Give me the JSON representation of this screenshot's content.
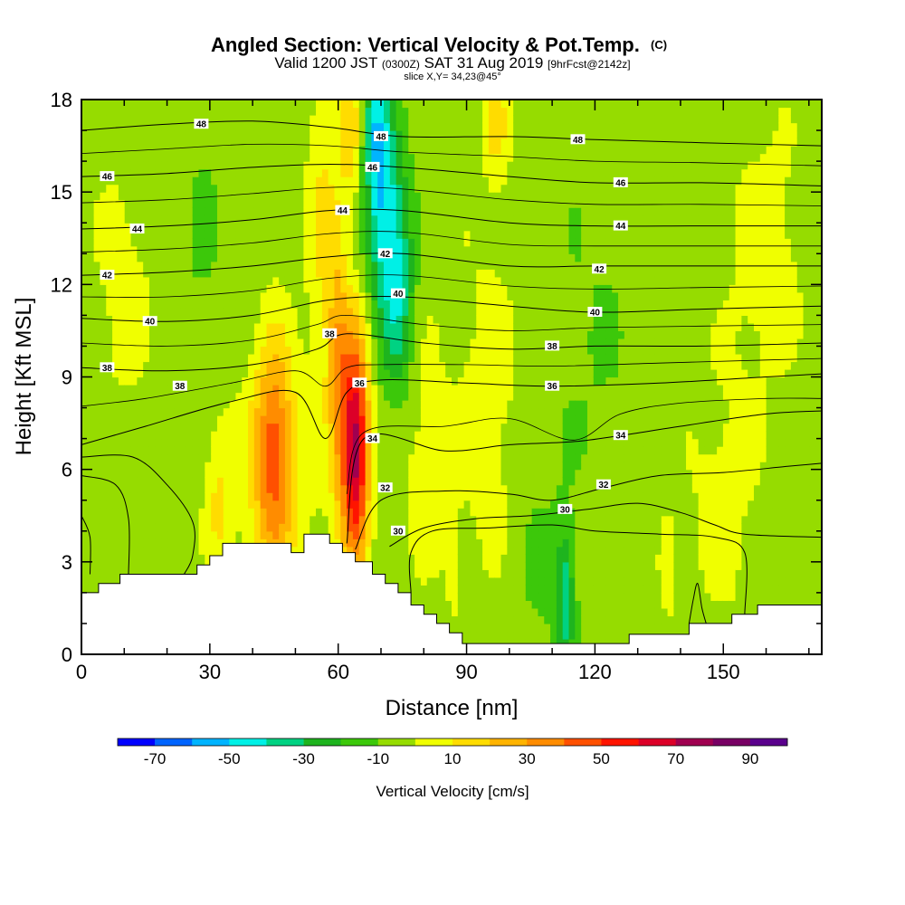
{
  "chart_data": {
    "type": "heatmap",
    "title": "Angled Section: Vertical Velocity & Pot.Temp.",
    "title_units": "(C)",
    "subtitle": {
      "valid": "Valid 1200 JST",
      "utc": "(0300Z)",
      "date": "SAT 31 Aug 2019",
      "forecast": "[9hrFcst@2142z]"
    },
    "slice": "slice X,Y= 34,23@45°",
    "xlabel": "Distance [nm]",
    "ylabel": "Height [Kft MSL]",
    "xlim": [
      0,
      173
    ],
    "ylim": [
      0,
      18
    ],
    "x_ticks": [
      0,
      30,
      60,
      90,
      120,
      150
    ],
    "y_ticks": [
      0,
      3,
      6,
      9,
      12,
      15,
      18
    ],
    "colorbar": {
      "label": "Vertical Velocity [cm/s]",
      "range": [
        -80,
        100
      ],
      "step": 10,
      "tick_values": [
        -70,
        -50,
        -30,
        -10,
        10,
        30,
        50,
        70,
        90
      ],
      "colors": [
        "#0000ff",
        "#0064ff",
        "#00b4ff",
        "#00f0e6",
        "#00d282",
        "#1eb41e",
        "#3cc80a",
        "#96dc00",
        "#f0ff00",
        "#ffdc00",
        "#ffb400",
        "#ff8c00",
        "#ff5000",
        "#ff1400",
        "#dc0028",
        "#a00050",
        "#780064",
        "#5a008c"
      ]
    },
    "background_value": -5,
    "features": [
      {
        "x": 64,
        "y": 6.7,
        "sx": 2.2,
        "sy": 2.6,
        "amp": 80
      },
      {
        "x": 60,
        "y": 9.5,
        "sx": 1.8,
        "sy": 3.2,
        "amp": 30
      },
      {
        "x": 56,
        "y": 14.0,
        "sx": 2.4,
        "sy": 4.0,
        "amp": 16
      },
      {
        "x": 63,
        "y": 17.0,
        "sx": 2.2,
        "sy": 1.6,
        "amp": 22
      },
      {
        "x": 45,
        "y": 6.6,
        "sx": 3.2,
        "sy": 2.6,
        "amp": 42
      },
      {
        "x": 45,
        "y": 5.5,
        "sx": 8.0,
        "sy": 2.6,
        "amp": 11
      },
      {
        "x": 32,
        "y": 5.0,
        "sx": 2.2,
        "sy": 1.8,
        "amp": 14
      },
      {
        "x": 74,
        "y": 12.0,
        "sx": 2.6,
        "sy": 2.6,
        "amp": -34
      },
      {
        "x": 70,
        "y": 15.0,
        "sx": 2.6,
        "sy": 2.6,
        "amp": -40
      },
      {
        "x": 68,
        "y": 17.3,
        "sx": 2.0,
        "sy": 1.3,
        "amp": -22
      },
      {
        "x": 113,
        "y": 1.8,
        "sx": 1.4,
        "sy": 1.6,
        "amp": -28
      },
      {
        "x": 108,
        "y": 2.5,
        "sx": 5.0,
        "sy": 2.0,
        "amp": -7
      },
      {
        "x": 97,
        "y": 17.2,
        "sx": 2.2,
        "sy": 1.3,
        "amp": 18
      },
      {
        "x": 137,
        "y": 3.0,
        "sx": 1.4,
        "sy": 1.1,
        "amp": 14
      },
      {
        "x": 87,
        "y": 3.0,
        "sx": 1.4,
        "sy": 1.1,
        "amp": 9
      },
      {
        "x": 120,
        "y": 10.0,
        "sx": 8.0,
        "sy": 4.5,
        "amp": -5
      },
      {
        "x": 160,
        "y": 13.0,
        "sx": 6.0,
        "sy": 3.0,
        "amp": 11
      },
      {
        "x": 150,
        "y": 5.0,
        "sx": 6.0,
        "sy": 3.0,
        "amp": 9
      },
      {
        "x": 10,
        "y": 12.0,
        "sx": 5.0,
        "sy": 3.0,
        "amp": 9
      },
      {
        "x": 28,
        "y": 14.0,
        "sx": 4.0,
        "sy": 3.0,
        "amp": -6
      },
      {
        "x": 95,
        "y": 8.0,
        "sx": 5.0,
        "sy": 4.0,
        "amp": 10
      },
      {
        "x": 80,
        "y": 6.5,
        "sx": 5.0,
        "sy": 3.0,
        "amp": 9
      }
    ],
    "terrain": [
      [
        0,
        2.0
      ],
      [
        4,
        2.0
      ],
      [
        4,
        2.3
      ],
      [
        9,
        2.3
      ],
      [
        9,
        2.6
      ],
      [
        14,
        2.6
      ],
      [
        27,
        2.6
      ],
      [
        27,
        2.9
      ],
      [
        30,
        2.9
      ],
      [
        30,
        3.2
      ],
      [
        33,
        3.2
      ],
      [
        33,
        3.6
      ],
      [
        49,
        3.6
      ],
      [
        49,
        3.3
      ],
      [
        52,
        3.3
      ],
      [
        52,
        3.9
      ],
      [
        58,
        3.9
      ],
      [
        58,
        3.6
      ],
      [
        61,
        3.6
      ],
      [
        61,
        3.3
      ],
      [
        64,
        3.3
      ],
      [
        64,
        3.0
      ],
      [
        68,
        3.0
      ],
      [
        68,
        2.6
      ],
      [
        71,
        2.6
      ],
      [
        71,
        2.3
      ],
      [
        74,
        2.3
      ],
      [
        74,
        2.0
      ],
      [
        77,
        2.0
      ],
      [
        77,
        1.6
      ],
      [
        80,
        1.6
      ],
      [
        80,
        1.3
      ],
      [
        83,
        1.3
      ],
      [
        83,
        1.0
      ],
      [
        86,
        1.0
      ],
      [
        86,
        0.7
      ],
      [
        89,
        0.7
      ],
      [
        89,
        0.35
      ],
      [
        128,
        0.35
      ],
      [
        128,
        0.65
      ],
      [
        142,
        0.65
      ],
      [
        142,
        1.0
      ],
      [
        152,
        1.0
      ],
      [
        152,
        1.3
      ],
      [
        158,
        1.3
      ],
      [
        158,
        1.6
      ],
      [
        173,
        1.6
      ]
    ],
    "theta_contours": [
      {
        "value": 30,
        "label": "30",
        "points": [
          [
            72,
            3.5
          ],
          [
            80,
            4.1
          ],
          [
            92,
            4.4
          ],
          [
            105,
            4.5
          ],
          [
            118,
            4.7
          ],
          [
            130,
            4.9
          ],
          [
            140,
            4.6
          ],
          [
            148,
            4.2
          ],
          [
            155,
            3.9
          ],
          [
            173,
            3.8
          ]
        ],
        "label_at": [
          74,
          4.0
        ]
      },
      {
        "value": 32,
        "label": "32",
        "points": [
          [
            64,
            3.4
          ],
          [
            70,
            5.0
          ],
          [
            85,
            5.3
          ],
          [
            100,
            5.2
          ],
          [
            110,
            5.0
          ],
          [
            122,
            5.4
          ],
          [
            135,
            5.8
          ],
          [
            150,
            5.9
          ],
          [
            165,
            6.1
          ],
          [
            173,
            6.2
          ]
        ],
        "label_at": [
          71,
          5.4
        ]
      },
      {
        "value": 34,
        "label": "34",
        "points": [
          [
            62,
            3.6
          ],
          [
            66,
            7.0
          ],
          [
            85,
            6.6
          ],
          [
            100,
            6.8
          ],
          [
            115,
            6.9
          ],
          [
            126,
            7.1
          ],
          [
            140,
            7.4
          ],
          [
            160,
            7.8
          ],
          [
            173,
            7.9
          ]
        ],
        "label_at": [
          68,
          7.0
        ]
      },
      {
        "value": 36,
        "label": "36",
        "points": [
          [
            0,
            6.8
          ],
          [
            15,
            7.4
          ],
          [
            35,
            8.2
          ],
          [
            50,
            8.5
          ],
          [
            57,
            7.0
          ],
          [
            62,
            8.5
          ],
          [
            70,
            8.9
          ],
          [
            90,
            8.8
          ],
          [
            110,
            8.7
          ],
          [
            135,
            8.8
          ],
          [
            160,
            9.0
          ],
          [
            173,
            9.1
          ]
        ],
        "label_at": [
          65,
          8.8
        ]
      },
      {
        "value": 38,
        "label": "38",
        "points": [
          [
            0,
            9.3
          ],
          [
            20,
            9.2
          ],
          [
            40,
            9.4
          ],
          [
            55,
            9.9
          ],
          [
            62,
            10.4
          ],
          [
            80,
            10.1
          ],
          [
            100,
            9.9
          ],
          [
            120,
            10.0
          ],
          [
            145,
            10.0
          ],
          [
            173,
            10.1
          ]
        ],
        "label_at": [
          58,
          10.4
        ]
      },
      {
        "value": 40,
        "label": "40",
        "points": [
          [
            0,
            10.9
          ],
          [
            20,
            10.8
          ],
          [
            40,
            11.0
          ],
          [
            58,
            11.5
          ],
          [
            75,
            11.6
          ],
          [
            100,
            11.3
          ],
          [
            120,
            11.1
          ],
          [
            145,
            11.2
          ],
          [
            173,
            11.3
          ]
        ],
        "label_at": [
          74,
          11.7
        ]
      },
      {
        "value": 42,
        "label": "42",
        "points": [
          [
            0,
            12.3
          ],
          [
            20,
            12.4
          ],
          [
            40,
            12.6
          ],
          [
            58,
            12.9
          ],
          [
            75,
            13.0
          ],
          [
            100,
            12.6
          ],
          [
            120,
            12.6
          ],
          [
            145,
            12.6
          ],
          [
            173,
            12.6
          ]
        ],
        "label_at": [
          71,
          13.0
        ]
      },
      {
        "value": 44,
        "label": "44",
        "points": [
          [
            0,
            13.8
          ],
          [
            20,
            13.9
          ],
          [
            40,
            14.1
          ],
          [
            58,
            14.4
          ],
          [
            75,
            14.4
          ],
          [
            100,
            14.0
          ],
          [
            120,
            13.9
          ],
          [
            145,
            13.9
          ],
          [
            173,
            13.9
          ]
        ],
        "label_at": [
          61,
          14.4
        ]
      },
      {
        "value": 46,
        "label": "46",
        "points": [
          [
            0,
            15.5
          ],
          [
            20,
            15.6
          ],
          [
            40,
            15.8
          ],
          [
            58,
            15.9
          ],
          [
            75,
            15.8
          ],
          [
            100,
            15.5
          ],
          [
            120,
            15.3
          ],
          [
            145,
            15.3
          ],
          [
            173,
            15.2
          ]
        ],
        "label_at": [
          68,
          15.8
        ]
      },
      {
        "value": 48,
        "label": "48",
        "points": [
          [
            0,
            17.0
          ],
          [
            20,
            17.2
          ],
          [
            40,
            17.3
          ],
          [
            58,
            17.1
          ],
          [
            75,
            16.8
          ],
          [
            100,
            16.8
          ],
          [
            120,
            16.7
          ],
          [
            145,
            16.6
          ],
          [
            173,
            16.5
          ]
        ],
        "label_at": [
          70,
          16.8
        ]
      }
    ],
    "extra_labels": [
      {
        "text": "46",
        "at": [
          6,
          15.5
        ]
      },
      {
        "text": "44",
        "at": [
          13,
          13.8
        ]
      },
      {
        "text": "42",
        "at": [
          6,
          12.3
        ]
      },
      {
        "text": "40",
        "at": [
          16,
          10.8
        ]
      },
      {
        "text": "38",
        "at": [
          6,
          9.3
        ]
      },
      {
        "text": "38",
        "at": [
          23,
          8.7
        ]
      },
      {
        "text": "48",
        "at": [
          28,
          17.2
        ]
      },
      {
        "text": "46",
        "at": [
          126,
          15.3
        ]
      },
      {
        "text": "44",
        "at": [
          126,
          13.9
        ]
      },
      {
        "text": "42",
        "at": [
          121,
          12.5
        ]
      },
      {
        "text": "40",
        "at": [
          120,
          11.1
        ]
      },
      {
        "text": "38",
        "at": [
          110,
          10.0
        ]
      },
      {
        "text": "36",
        "at": [
          110,
          8.7
        ]
      },
      {
        "text": "34",
        "at": [
          126,
          7.1
        ]
      },
      {
        "text": "32",
        "at": [
          122,
          5.5
        ]
      },
      {
        "text": "30",
        "at": [
          113,
          4.7
        ]
      },
      {
        "text": "48",
        "at": [
          116,
          16.7
        ]
      }
    ],
    "low_level_contours": [
      {
        "points": [
          [
            0,
            6.4
          ],
          [
            12,
            6.4
          ],
          [
            20,
            5.5
          ],
          [
            26,
            4.3
          ],
          [
            26,
            3.2
          ],
          [
            24,
            2.6
          ]
        ]
      },
      {
        "points": [
          [
            0,
            5.8
          ],
          [
            8,
            5.5
          ],
          [
            11,
            4.4
          ],
          [
            11,
            2.6
          ]
        ]
      },
      {
        "points": [
          [
            0,
            4.5
          ],
          [
            2,
            3.8
          ],
          [
            2,
            2.6
          ]
        ]
      },
      {
        "points": [
          [
            77,
            2.0
          ],
          [
            77,
            3.3
          ],
          [
            82,
            4.0
          ],
          [
            95,
            4.1
          ],
          [
            110,
            4.2
          ],
          [
            120,
            4.0
          ],
          [
            135,
            3.9
          ],
          [
            148,
            3.8
          ],
          [
            155,
            3.3
          ],
          [
            155,
            1.3
          ]
        ]
      },
      {
        "points": [
          [
            142,
            1.0
          ],
          [
            143,
            1.8
          ],
          [
            144,
            2.3
          ],
          [
            145,
            1.5
          ],
          [
            146,
            1.0
          ]
        ]
      }
    ]
  }
}
